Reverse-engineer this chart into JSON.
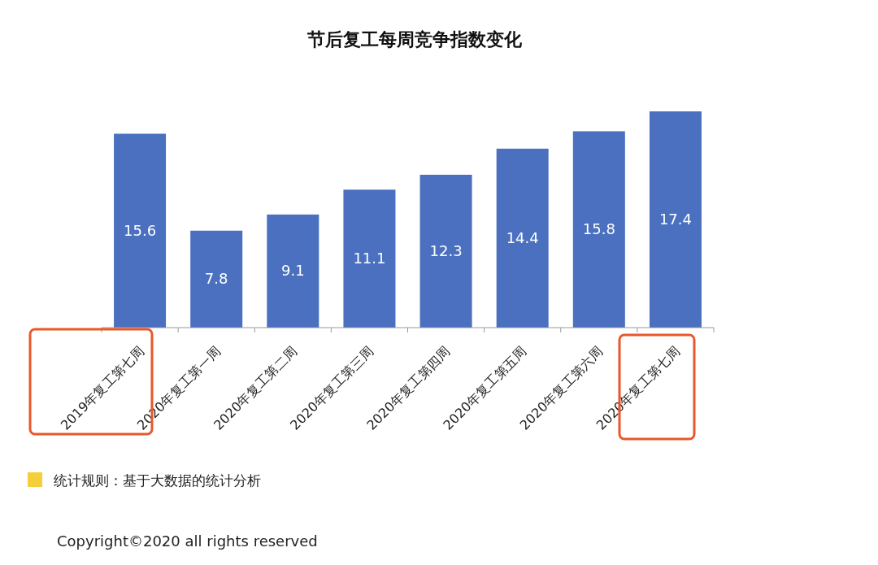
{
  "chart_data": {
    "type": "bar",
    "title": "节后复工每周竞争指数变化",
    "categories": [
      "2019年复工第七周",
      "2020年复工第一周",
      "2020年复工第二周",
      "2020年复工第三周",
      "2020年复工第四周",
      "2020年复工第五周",
      "2020年复工第六周",
      "2020年复工第七周"
    ],
    "values": [
      15.6,
      7.8,
      9.1,
      11.1,
      12.3,
      14.4,
      15.8,
      17.4
    ],
    "color": "#4a70bf",
    "data_labels": true,
    "annotations": [
      "统计规则：基于大数据的统计分析",
      "Copyright©2020 all rights reserved"
    ]
  }
}
